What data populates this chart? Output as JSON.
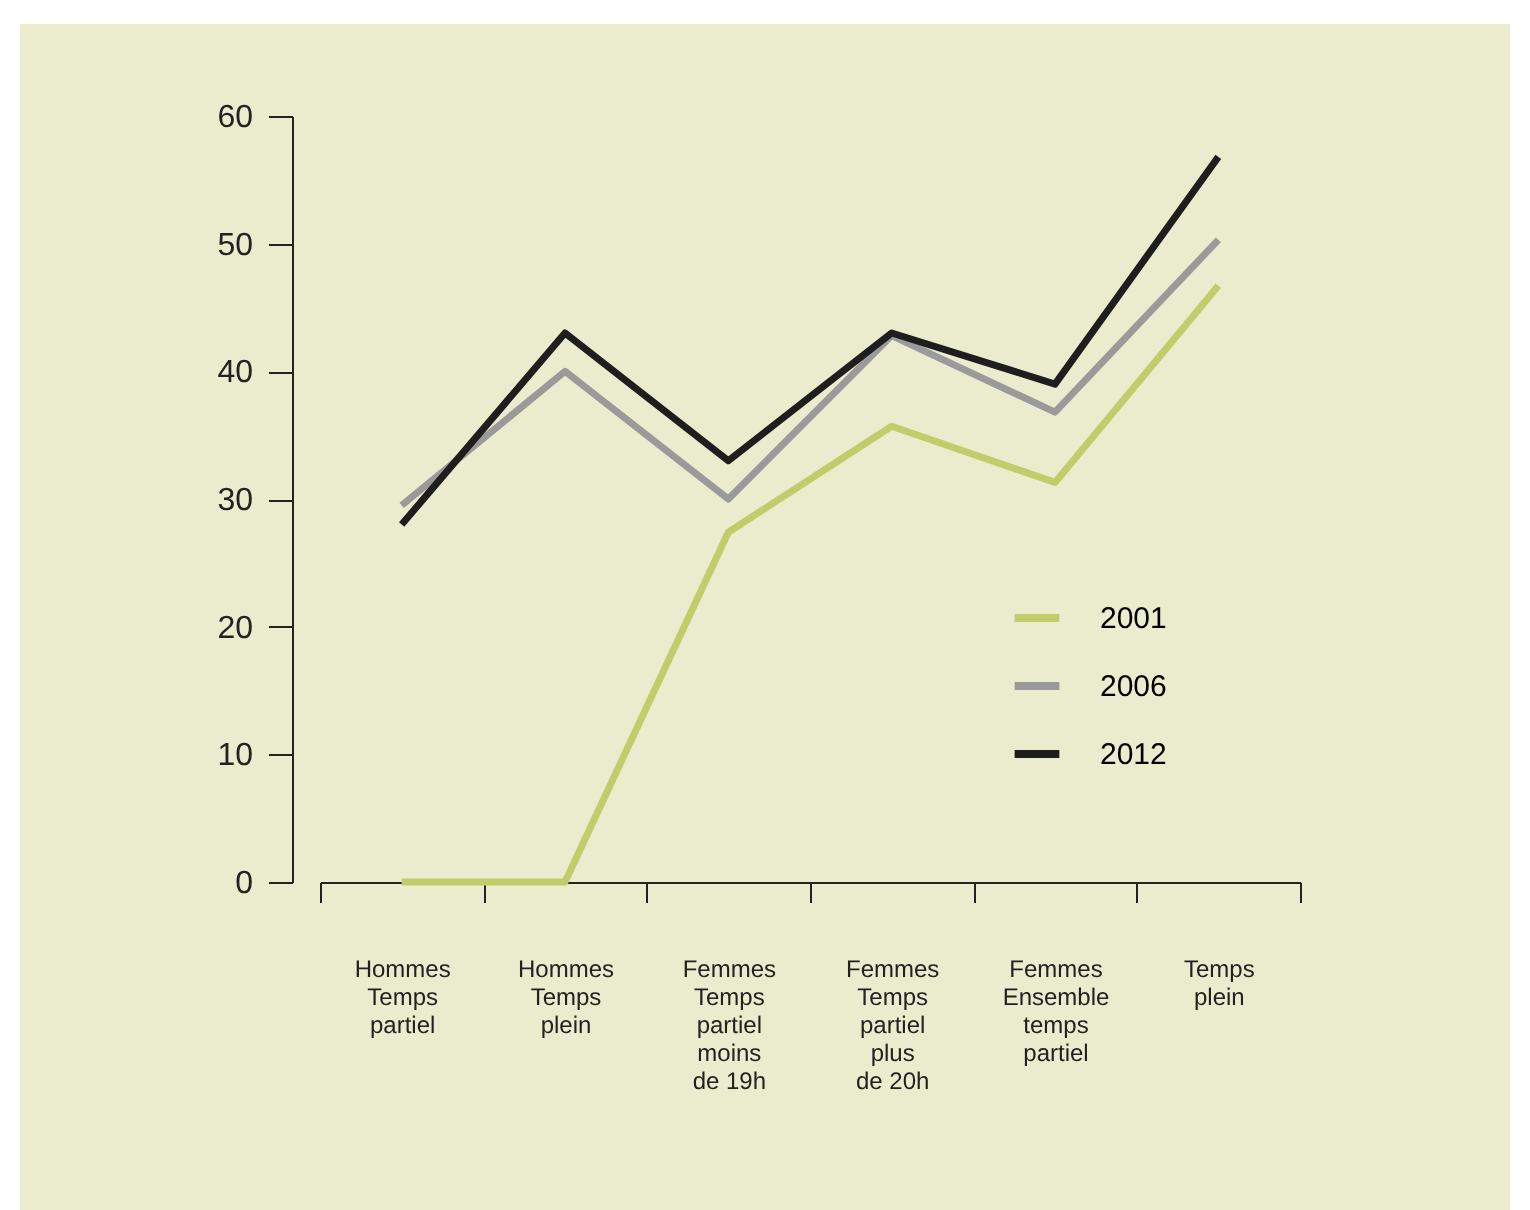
{
  "chart_data": {
    "type": "line",
    "categories": [
      "Hommes\nTemps\npartiel",
      "Hommes\nTemps\nplein",
      "Femmes\nTemps\npartiel\nmoins\nde 19h",
      "Femmes\nTemps\npartiel\nplus\nde 20h",
      "Femmes\nEnsemble\ntemps\npartiel",
      "Temps\nplein"
    ],
    "series": [
      {
        "name": "2001",
        "color": "#c2cc6a",
        "values": [
          0,
          0,
          27.4,
          35.7,
          31.3,
          46.7
        ]
      },
      {
        "name": "2006",
        "color": "#9a9a9a",
        "values": [
          29.5,
          40,
          30,
          42.8,
          36.8,
          50.3
        ]
      },
      {
        "name": "2012",
        "color": "#1e1e1e",
        "values": [
          28,
          43,
          33,
          43,
          39,
          56.8
        ]
      }
    ],
    "ylim": [
      0,
      60
    ],
    "yticks": [
      0,
      10,
      20,
      30,
      40,
      50,
      60
    ],
    "legend": "right",
    "marker": "none",
    "line_style": "solid"
  }
}
